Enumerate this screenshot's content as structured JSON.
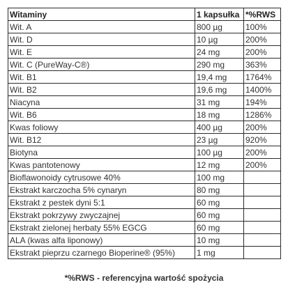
{
  "table": {
    "headers": [
      "Witaminy",
      "1 kapsułka",
      "*%RWS"
    ],
    "rows": [
      [
        "Wit. A",
        "800 µg",
        "100%"
      ],
      [
        "Wit. D",
        "10 µg",
        "200%"
      ],
      [
        "Wit. E",
        "24 mg",
        "200%"
      ],
      [
        "Wit. C (PureWay-C®)",
        "290 mg",
        "363%"
      ],
      [
        "Wit. B1",
        "19,4 mg",
        "1764%"
      ],
      [
        "Wit. B2",
        "19,6 mg",
        "1400%"
      ],
      [
        "Niacyna",
        "31 mg",
        "194%"
      ],
      [
        "Wit. B6",
        "18 mg",
        "1286%"
      ],
      [
        "Kwas foliowy",
        "400 µg",
        "200%"
      ],
      [
        "Wit. B12",
        "23 µg",
        "920%"
      ],
      [
        "Biotyna",
        "100 µg",
        "200%"
      ],
      [
        "Kwas pantotenowy",
        "12 mg",
        "200%"
      ],
      [
        "Bioflawonoidy cytrusowe 40%",
        "100 mg",
        ""
      ],
      [
        "Ekstrakt karczocha 5% cynaryn",
        "80 mg",
        ""
      ],
      [
        "Ekstrakt z pestek dyni 5:1",
        "60 mg",
        ""
      ],
      [
        "Ekstrakt pokrzywy zwyczajnej",
        "60 mg",
        ""
      ],
      [
        "Ekstrakt zielonej herbaty 55% EGCG",
        "60 mg",
        ""
      ],
      [
        "ALA (kwas alfa liponowy)",
        "10 mg",
        ""
      ],
      [
        "Ekstrakt pieprzu czarnego Bioperine® (95%)",
        "1 mg",
        ""
      ]
    ]
  },
  "footnote": "*%RWS - referencyjna wartość spożycia"
}
